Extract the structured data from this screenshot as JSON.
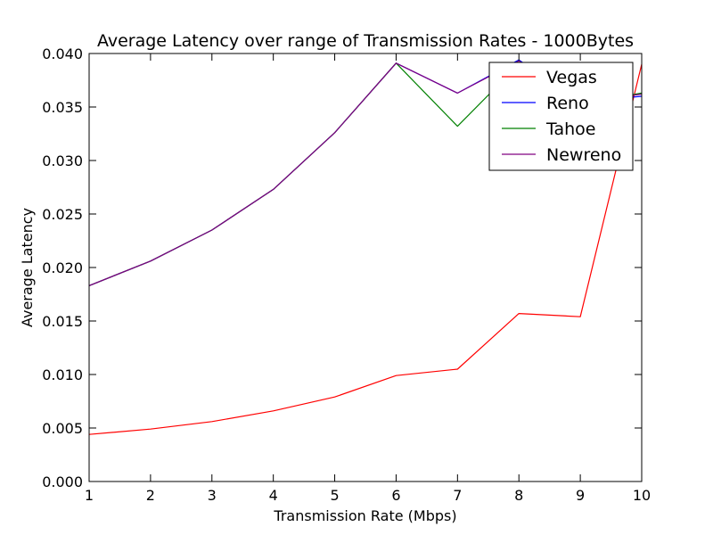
{
  "chart_data": {
    "type": "line",
    "title": "Average Latency over range of Transmission Rates - 1000Bytes",
    "xlabel": "Transmission Rate (Mbps)",
    "ylabel": "Average Latency",
    "xlim": [
      1,
      10
    ],
    "ylim": [
      0.0,
      0.04
    ],
    "x_ticks": [
      "1",
      "2",
      "3",
      "4",
      "5",
      "6",
      "7",
      "8",
      "9",
      "10"
    ],
    "y_ticks": [
      "0.000",
      "0.005",
      "0.010",
      "0.015",
      "0.020",
      "0.025",
      "0.030",
      "0.035",
      "0.040"
    ],
    "grid": false,
    "legend_position": "top-right",
    "x": [
      1,
      2,
      3,
      4,
      5,
      6,
      7,
      8,
      9,
      10
    ],
    "series": [
      {
        "name": "Vegas",
        "color": "#ff0000",
        "values": [
          0.0044,
          0.0049,
          0.0056,
          0.0066,
          0.0079,
          0.0099,
          0.0105,
          0.0157,
          0.0154,
          0.039
        ]
      },
      {
        "name": "Reno",
        "color": "#0000ff",
        "values": [
          0.0183,
          0.0206,
          0.0235,
          0.0273,
          0.0326,
          0.0391,
          0.0363,
          0.0394,
          0.0355,
          0.036
        ]
      },
      {
        "name": "Tahoe",
        "color": "#008000",
        "values": [
          0.0183,
          0.0206,
          0.0235,
          0.0273,
          0.0326,
          0.0391,
          0.0332,
          0.039,
          0.0353,
          0.0363
        ]
      },
      {
        "name": "Newreno",
        "color": "#800080",
        "values": [
          0.0183,
          0.0206,
          0.0235,
          0.0273,
          0.0326,
          0.0391,
          0.0363,
          0.0393,
          0.0355,
          0.0362
        ]
      }
    ]
  }
}
